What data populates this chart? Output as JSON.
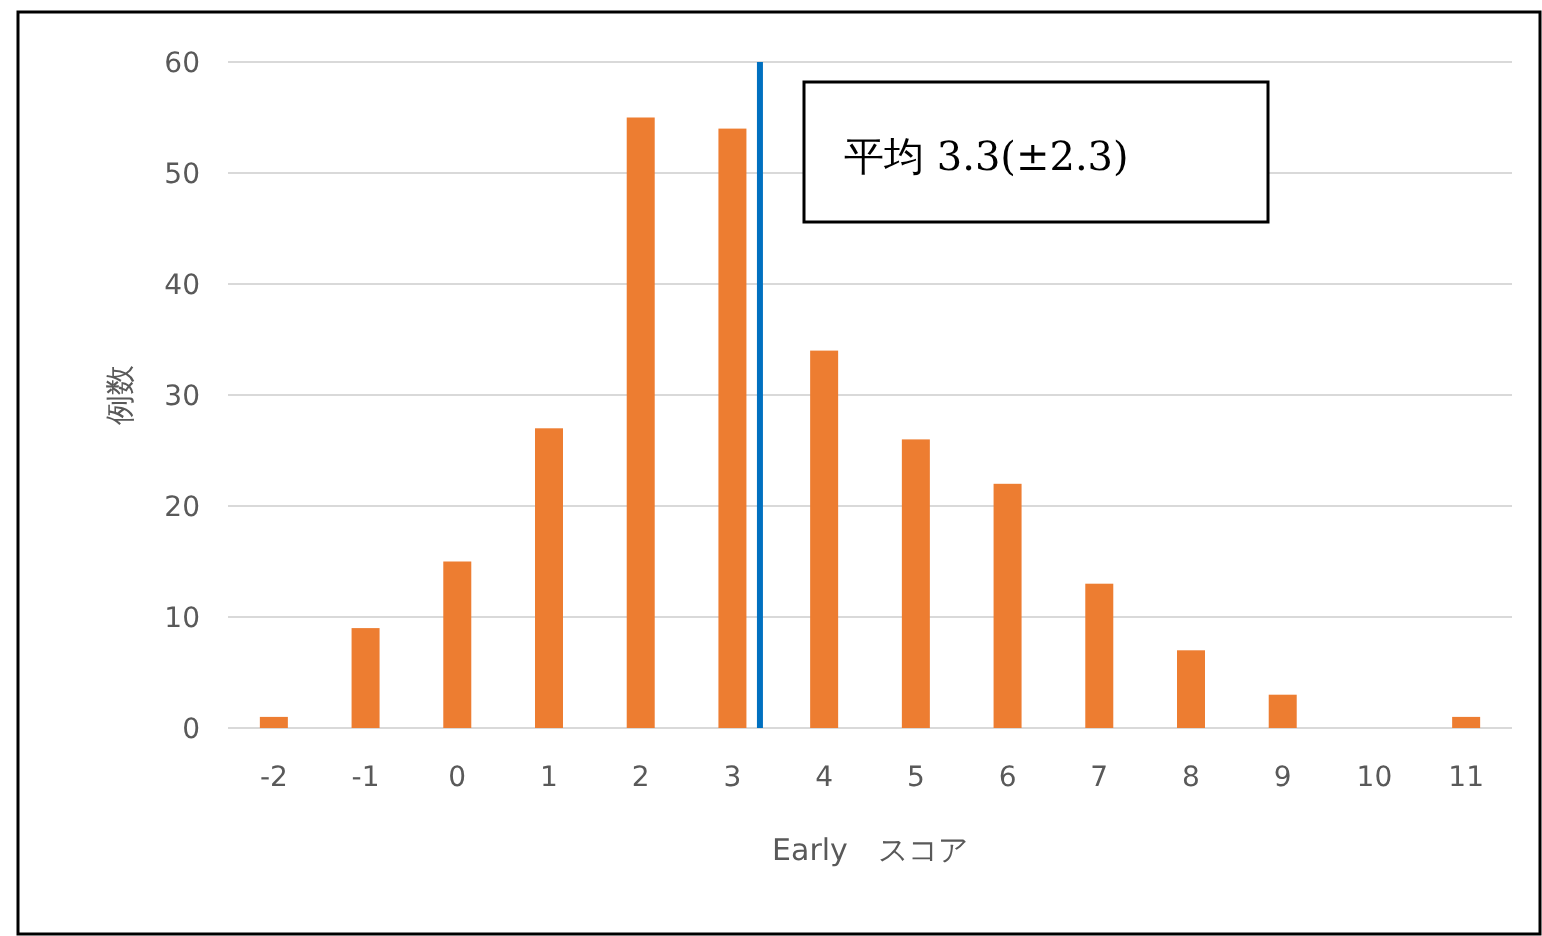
{
  "chart_data": {
    "type": "bar",
    "xlabel": "Early　スコア",
    "ylabel": "例数",
    "x": [
      -2,
      -1,
      0,
      1,
      2,
      3,
      4,
      5,
      6,
      7,
      8,
      9,
      10,
      11
    ],
    "values": [
      1,
      9,
      15,
      27,
      55,
      54,
      34,
      26,
      22,
      13,
      7,
      3,
      0,
      1
    ],
    "color": "#ed7d31",
    "xlim": [
      -2.5,
      11.5
    ],
    "xticks": [
      -2,
      -1,
      0,
      1,
      2,
      3,
      4,
      5,
      6,
      7,
      8,
      9,
      10,
      11
    ],
    "ylim": [
      0,
      60
    ],
    "yticks": [
      0,
      10,
      20,
      30,
      40,
      50,
      60
    ],
    "grid": "y",
    "ref_lines": [
      {
        "axis": "x",
        "value": 3.3,
        "color": "#0070c0"
      }
    ],
    "annotations": [
      "平均 3.3(±2.3)"
    ]
  }
}
